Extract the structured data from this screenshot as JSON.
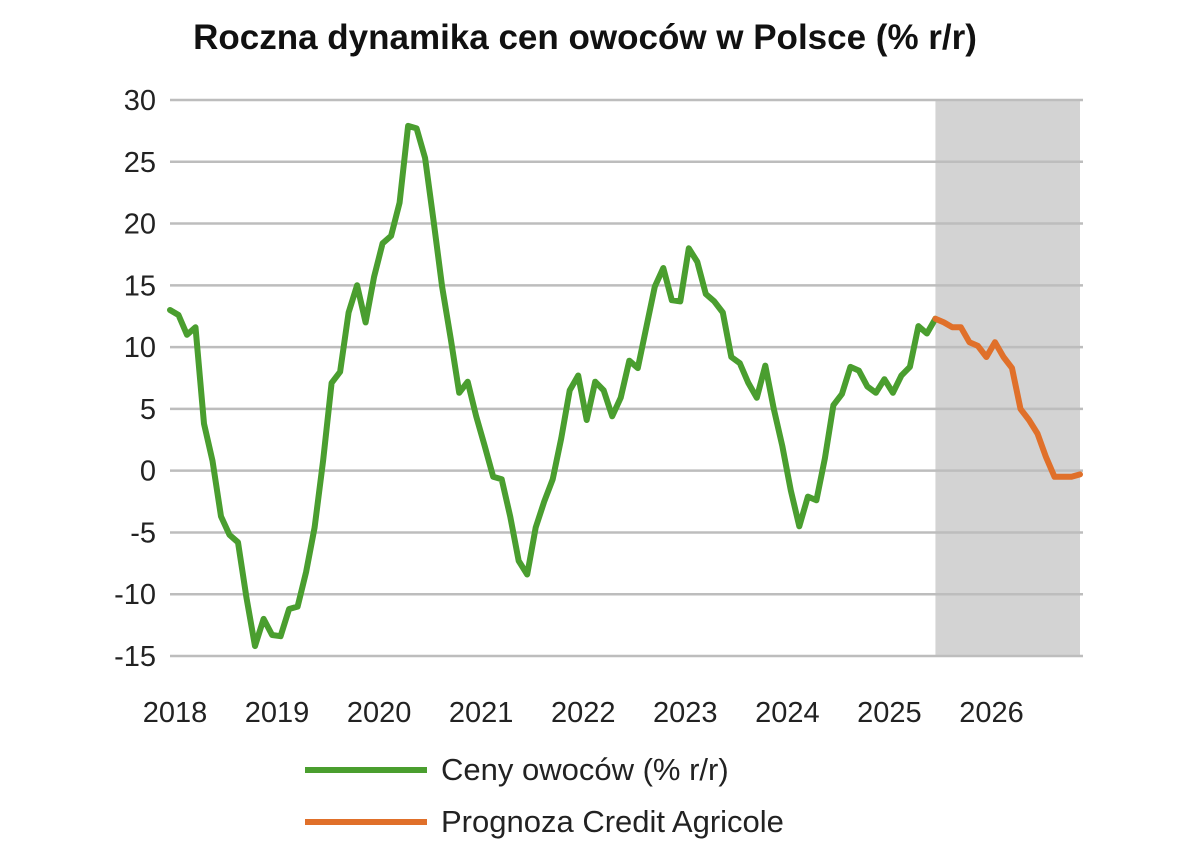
{
  "chart_data": {
    "type": "line",
    "title": "Roczna dynamika cen owoców w Polsce (% r/r)",
    "xlabel": "",
    "ylabel": "",
    "ylim": [
      -15,
      30
    ],
    "yticks": [
      30,
      25,
      20,
      15,
      10,
      5,
      0,
      -5,
      -10,
      -15
    ],
    "xticks": [
      "2018",
      "2019",
      "2020",
      "2021",
      "2022",
      "2023",
      "2024",
      "2025",
      "2026"
    ],
    "x_range": [
      "2018-01",
      "2026-12"
    ],
    "grid": "horizontal",
    "legend_position": "bottom",
    "shaded_forecast_region": [
      "2025-07",
      "2026-12"
    ],
    "shade_color": "#d3d3d3",
    "series": [
      {
        "name": "Ceny owoców (% r/r)",
        "color": "#4a9e2f",
        "start": "2018-01",
        "values": [
          13.0,
          12.6,
          11.0,
          11.6,
          3.8,
          0.8,
          -3.7,
          -5.2,
          -5.8,
          -10.3,
          -14.2,
          -12.0,
          -13.3,
          -13.4,
          -11.2,
          -11.0,
          -8.2,
          -4.6,
          0.8,
          7.1,
          8.0,
          12.8,
          15.0,
          12.0,
          15.7,
          18.4,
          19.0,
          21.7,
          27.9,
          27.7,
          25.3,
          20.2,
          14.9,
          10.7,
          6.3,
          7.2,
          4.4,
          2.0,
          -0.5,
          -0.7,
          -3.7,
          -7.3,
          -8.4,
          -4.6,
          -2.5,
          -0.7,
          2.6,
          6.5,
          7.7,
          4.1,
          7.2,
          6.5,
          4.4,
          5.9,
          8.9,
          8.3,
          11.6,
          14.9,
          16.4,
          13.8,
          13.7,
          18.0,
          16.9,
          14.3,
          13.7,
          12.8,
          9.2,
          8.7,
          7.1,
          5.9,
          8.5,
          5.0,
          2.0,
          -1.6,
          -4.5,
          -2.1,
          -2.4,
          1.0,
          5.3,
          6.2,
          8.4,
          8.1,
          6.8,
          6.3,
          7.4,
          6.3,
          7.7,
          8.4,
          11.7,
          11.1,
          12.3
        ]
      },
      {
        "name": "Prognoza Credit Agricole",
        "color": "#e0702a",
        "start": "2025-07",
        "values": [
          12.3,
          12.0,
          11.6,
          11.6,
          10.4,
          10.1,
          9.2,
          10.4,
          9.2,
          8.3,
          5.0,
          4.1,
          3.0,
          1.1,
          -0.5,
          -0.5,
          -0.5,
          -0.3
        ]
      }
    ]
  }
}
